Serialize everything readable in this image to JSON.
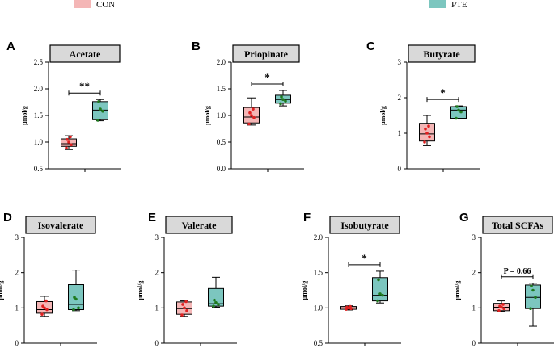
{
  "legend": {
    "entries": [
      {
        "label": "CON",
        "color": "#f4b6b6"
      },
      {
        "label": "PTE",
        "color": "#7cc6bf"
      }
    ]
  },
  "colors": {
    "con_fill": "#f4b6b6",
    "con_point": "#e02020",
    "pte_fill": "#7cc6bf",
    "pte_point": "#1e7a1e",
    "title_fill": "#d9d9d9"
  },
  "chart_data": [
    {
      "panel": "A",
      "type": "box",
      "title": "Acetate",
      "ylabel": "μmol/g",
      "ylim": [
        0.5,
        2.5
      ],
      "yticks": [
        "0.5",
        "1.0",
        "1.5",
        "2.0",
        "2.5"
      ],
      "ytick_values": [
        0.5,
        1.0,
        1.5,
        2.0,
        2.5
      ],
      "series": [
        {
          "name": "CON",
          "min": 0.86,
          "q1": 0.92,
          "median": 0.97,
          "q3": 1.06,
          "max": 1.12,
          "points": [
            0.89,
            0.95,
            1.0,
            1.05,
            1.1
          ]
        },
        {
          "name": "PTE",
          "min": 1.4,
          "q1": 1.42,
          "median": 1.6,
          "q3": 1.76,
          "max": 1.8,
          "points": [
            1.41,
            1.58,
            1.62,
            1.76
          ]
        }
      ],
      "significance": "**"
    },
    {
      "panel": "B",
      "type": "box",
      "title": "Priopinate",
      "ylabel": "μmol/g",
      "ylim": [
        0.0,
        2.0
      ],
      "yticks": [
        "0.0",
        "0.5",
        "1.0",
        "1.5",
        "2.0"
      ],
      "ytick_values": [
        0.0,
        0.5,
        1.0,
        1.5,
        2.0
      ],
      "series": [
        {
          "name": "CON",
          "min": 0.82,
          "q1": 0.86,
          "median": 0.97,
          "q3": 1.15,
          "max": 1.33,
          "points": [
            0.84,
            0.96,
            1.0,
            1.05,
            1.12
          ]
        },
        {
          "name": "PTE",
          "min": 1.18,
          "q1": 1.23,
          "median": 1.3,
          "q3": 1.38,
          "max": 1.47,
          "points": [
            1.22,
            1.27,
            1.3,
            1.35
          ]
        }
      ],
      "significance": "*"
    },
    {
      "panel": "C",
      "type": "box",
      "title": "Butyrate",
      "ylabel": "μmol/g",
      "ylim": [
        0,
        3
      ],
      "yticks": [
        "0",
        "1",
        "2",
        "3"
      ],
      "ytick_values": [
        0,
        1,
        2,
        3
      ],
      "series": [
        {
          "name": "CON",
          "min": 0.65,
          "q1": 0.78,
          "median": 0.98,
          "q3": 1.28,
          "max": 1.5,
          "points": [
            0.75,
            0.9,
            1.0,
            1.12,
            1.2
          ]
        },
        {
          "name": "PTE",
          "min": 1.4,
          "q1": 1.42,
          "median": 1.65,
          "q3": 1.75,
          "max": 1.77,
          "points": [
            1.42,
            1.6,
            1.65,
            1.75
          ]
        }
      ],
      "significance": "*"
    },
    {
      "panel": "D",
      "type": "box",
      "title": "Isovalerate",
      "ylabel": "μmol/g",
      "ylim": [
        0,
        3
      ],
      "yticks": [
        "0",
        "1",
        "2",
        "3"
      ],
      "ytick_values": [
        0,
        1,
        2,
        3
      ],
      "series": [
        {
          "name": "CON",
          "min": 0.76,
          "q1": 0.85,
          "median": 0.95,
          "q3": 1.18,
          "max": 1.33,
          "points": [
            0.82,
            0.95,
            1.0,
            1.05,
            1.2
          ]
        },
        {
          "name": "PTE",
          "min": 0.92,
          "q1": 0.95,
          "median": 1.1,
          "q3": 1.66,
          "max": 2.07,
          "points": [
            0.95,
            1.0,
            1.25,
            1.3
          ]
        }
      ],
      "significance": ""
    },
    {
      "panel": "E",
      "type": "box",
      "title": "Valerate",
      "ylabel": "μmol/g",
      "ylim": [
        0,
        3
      ],
      "yticks": [
        "0",
        "1",
        "2",
        "3"
      ],
      "ytick_values": [
        0,
        1,
        2,
        3
      ],
      "series": [
        {
          "name": "CON",
          "min": 0.76,
          "q1": 0.82,
          "median": 0.98,
          "q3": 1.17,
          "max": 1.2,
          "points": [
            0.8,
            0.92,
            1.0,
            1.1,
            1.18
          ]
        },
        {
          "name": "PTE",
          "min": 1.02,
          "q1": 1.05,
          "median": 1.12,
          "q3": 1.55,
          "max": 1.87,
          "points": [
            1.05,
            1.1,
            1.15,
            1.22
          ]
        }
      ],
      "significance": ""
    },
    {
      "panel": "F",
      "type": "box",
      "title": "Isobutyrate",
      "ylabel": "μmol/g",
      "ylim": [
        0.5,
        2.0
      ],
      "yticks": [
        "0.5",
        "1.0",
        "1.5",
        "2.0"
      ],
      "ytick_values": [
        0.5,
        1.0,
        1.5,
        2.0
      ],
      "series": [
        {
          "name": "CON",
          "min": 0.97,
          "q1": 0.98,
          "median": 1.0,
          "q3": 1.02,
          "max": 1.03,
          "points": [
            0.98,
            0.99,
            1.0,
            1.01,
            1.02
          ]
        },
        {
          "name": "PTE",
          "min": 1.07,
          "q1": 1.1,
          "median": 1.18,
          "q3": 1.43,
          "max": 1.52,
          "points": [
            1.1,
            1.18,
            1.2,
            1.4
          ]
        }
      ],
      "significance": "*"
    },
    {
      "panel": "G",
      "type": "box",
      "title": "Total SCFAs",
      "ylabel": "μmol/g",
      "ylim": [
        0,
        3
      ],
      "yticks": [
        "0",
        "1",
        "2",
        "3"
      ],
      "ytick_values": [
        0,
        1,
        2,
        3
      ],
      "series": [
        {
          "name": "CON",
          "min": 0.9,
          "q1": 0.92,
          "median": 1.02,
          "q3": 1.13,
          "max": 1.2,
          "points": [
            0.92,
            0.98,
            1.02,
            1.05,
            1.1
          ]
        },
        {
          "name": "PTE",
          "min": 0.48,
          "q1": 0.98,
          "median": 1.3,
          "q3": 1.65,
          "max": 1.7,
          "points": [
            0.98,
            1.3,
            1.5,
            1.62
          ]
        }
      ],
      "significance": "P = 0.66"
    }
  ]
}
